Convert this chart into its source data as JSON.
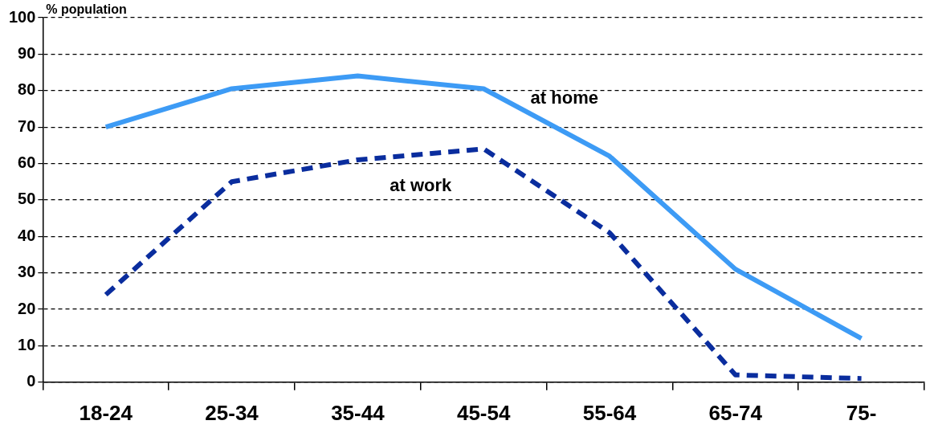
{
  "chart_data": {
    "type": "line",
    "ylabel": "% population",
    "categories": [
      "18-24",
      "25-34",
      "35-44",
      "45-54",
      "55-64",
      "65-74",
      "75-"
    ],
    "series": [
      {
        "name": "at home",
        "color": "#3d9bf5",
        "line_style": "solid",
        "values": [
          70,
          80.5,
          84,
          80.5,
          62,
          31,
          12
        ]
      },
      {
        "name": "at work",
        "color": "#0a2d9e",
        "line_style": "dashed",
        "values": [
          24,
          55,
          61,
          64,
          41,
          2,
          1
        ]
      }
    ],
    "ylim": [
      0,
      100
    ],
    "yticks": [
      0,
      10,
      20,
      30,
      40,
      50,
      60,
      70,
      80,
      90,
      100
    ],
    "grid": "y",
    "legend": false,
    "marker": "none"
  }
}
